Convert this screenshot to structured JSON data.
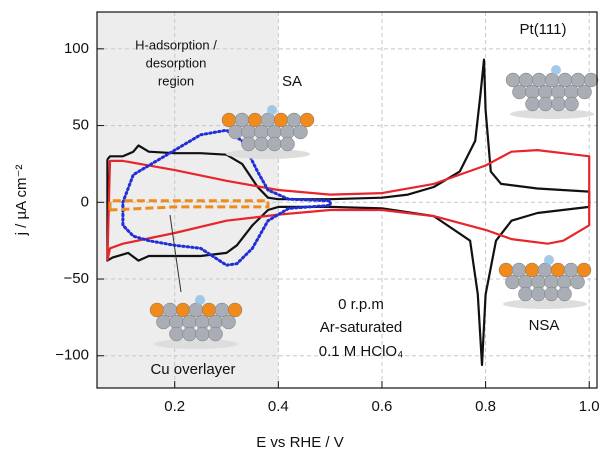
{
  "chart_data": {
    "type": "line",
    "x_label": "E vs RHE / V",
    "y_label": "j / µA cm⁻²",
    "xlim": [
      0.05,
      1.015
    ],
    "ylim": [
      -121,
      124
    ],
    "xticks": [
      0.2,
      0.4,
      0.6,
      0.8,
      {
        "value": 1,
        "label": "1.0"
      }
    ],
    "yticks": [
      {
        "value": -100,
        "label": "−100"
      },
      {
        "value": -50,
        "label": "−50"
      },
      0,
      50,
      100
    ],
    "grid": true,
    "shade_to": 0.4,
    "annotations": [
      {
        "text": "H-adsorption /"
      },
      {
        "text": "desorption"
      },
      {
        "text": "region"
      },
      {
        "text": "SA"
      },
      {
        "text": "Pt(111)"
      },
      {
        "text": "NSA"
      },
      {
        "text": "0 r.p.m"
      },
      {
        "text": "Ar-saturated"
      },
      {
        "text": "0.1 M HClO₄"
      },
      {
        "text": "Cu overlayer"
      }
    ],
    "series": [
      {
        "color": "#111111",
        "dash": "solid",
        "x": [
          0.07,
          0.075,
          0.1,
          0.12,
          0.13,
          0.15,
          0.2,
          0.25,
          0.3,
          0.33,
          0.36,
          0.38,
          0.4,
          0.5,
          0.6,
          0.65,
          0.7,
          0.75,
          0.78,
          0.79,
          0.797,
          0.8,
          0.81,
          0.83,
          0.9,
          1.0,
          1.0,
          0.9,
          0.85,
          0.82,
          0.8,
          0.793,
          0.785,
          0.77,
          0.7,
          0.6,
          0.5,
          0.4,
          0.38,
          0.35,
          0.32,
          0.3,
          0.25,
          0.15,
          0.13,
          0.11,
          0.08,
          0.07,
          0.07
        ],
        "values": [
          28,
          30,
          30,
          33,
          37,
          33,
          32,
          32,
          31,
          25,
          10,
          3,
          2,
          2,
          3,
          5,
          10,
          20,
          40,
          70,
          93,
          60,
          20,
          12,
          9,
          7,
          -3,
          -7,
          -12,
          -25,
          -60,
          -106,
          -60,
          -25,
          -9,
          -4,
          -3,
          -3,
          -5,
          -15,
          -28,
          -33,
          -35,
          -35,
          -38,
          -33,
          -36,
          -38,
          28
        ]
      },
      {
        "color": "#e8252a",
        "dash": "solid",
        "x": [
          0.07,
          0.075,
          0.1,
          0.2,
          0.3,
          0.4,
          0.5,
          0.6,
          0.7,
          0.8,
          0.85,
          0.9,
          0.95,
          1.0,
          1.0,
          0.95,
          0.92,
          0.85,
          0.8,
          0.7,
          0.6,
          0.5,
          0.4,
          0.3,
          0.2,
          0.1,
          0.075,
          0.07
        ],
        "values": [
          -38,
          27,
          27,
          21,
          14,
          8,
          5,
          6,
          12,
          24,
          33,
          34,
          32,
          30,
          -15,
          -25,
          -27,
          -24,
          -18,
          -9,
          -5,
          -5,
          -8,
          -12,
          -20,
          -27,
          -30,
          -38
        ]
      },
      {
        "color": "#1f2ed6",
        "dash": "dotted",
        "x": [
          0.1,
          0.12,
          0.18,
          0.25,
          0.3,
          0.33,
          0.36,
          0.38,
          0.42,
          0.5,
          0.5,
          0.42,
          0.38,
          0.35,
          0.32,
          0.3,
          0.25,
          0.2,
          0.15,
          0.12,
          0.1,
          0.1
        ],
        "values": [
          0,
          18,
          30,
          44,
          47,
          40,
          20,
          8,
          2,
          1,
          -2,
          -4,
          -12,
          -30,
          -40,
          -41,
          -30,
          -28,
          -25,
          -22,
          -15,
          0
        ]
      },
      {
        "color": "#f08a1c",
        "dash": "dashed",
        "x": [
          0.075,
          0.075,
          0.2,
          0.3,
          0.38,
          0.38,
          0.3,
          0.2,
          0.075
        ],
        "values": [
          -5,
          1,
          1,
          1,
          1,
          -3,
          -3,
          -3,
          -5
        ]
      }
    ]
  }
}
